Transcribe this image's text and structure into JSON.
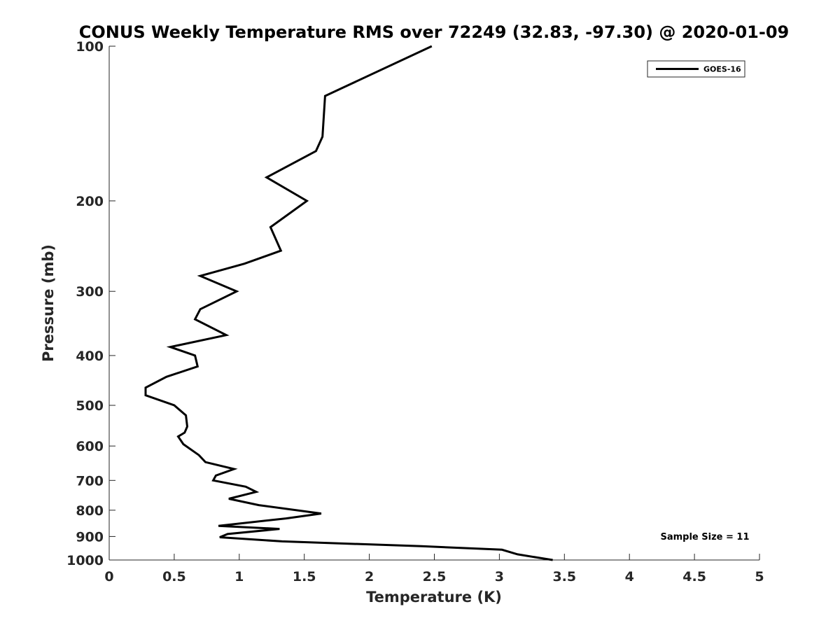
{
  "chart_data": {
    "type": "line",
    "title": "CONUS Weekly Temperature RMS over 72249 (32.83, -97.30) @ 2020-01-09",
    "xlabel": "Temperature (K)",
    "ylabel": "Pressure (mb)",
    "xlim": [
      0,
      5
    ],
    "ylim": [
      100,
      1000
    ],
    "y_scale": "log",
    "y_reversed": true,
    "x_ticks": [
      "0",
      "0.5",
      "1",
      "1.5",
      "2",
      "2.5",
      "3",
      "3.5",
      "4",
      "4.5",
      "5"
    ],
    "y_ticks": [
      "100",
      "200",
      "300",
      "400",
      "500",
      "600",
      "700",
      "800",
      "900",
      "1000"
    ],
    "grid": false,
    "legend_position": "top-right",
    "annotation": "Sample Size = 11",
    "series": [
      {
        "name": "GOES-16",
        "color": "#000000",
        "points": [
          [
            2.48,
            100
          ],
          [
            1.66,
            125
          ],
          [
            1.64,
            150
          ],
          [
            1.59,
            160
          ],
          [
            1.21,
            180
          ],
          [
            1.52,
            200
          ],
          [
            1.24,
            225
          ],
          [
            1.32,
            250
          ],
          [
            1.04,
            265
          ],
          [
            0.7,
            280
          ],
          [
            0.98,
            300
          ],
          [
            0.7,
            325
          ],
          [
            0.66,
            340
          ],
          [
            0.9,
            365
          ],
          [
            0.47,
            385
          ],
          [
            0.66,
            400
          ],
          [
            0.68,
            420
          ],
          [
            0.44,
            440
          ],
          [
            0.28,
            462
          ],
          [
            0.28,
            478
          ],
          [
            0.5,
            500
          ],
          [
            0.59,
            523
          ],
          [
            0.6,
            550
          ],
          [
            0.58,
            565
          ],
          [
            0.53,
            575
          ],
          [
            0.57,
            595
          ],
          [
            0.69,
            625
          ],
          [
            0.74,
            645
          ],
          [
            0.96,
            665
          ],
          [
            0.82,
            685
          ],
          [
            0.8,
            700
          ],
          [
            1.05,
            720
          ],
          [
            1.13,
            737
          ],
          [
            0.92,
            760
          ],
          [
            1.15,
            782
          ],
          [
            1.63,
            812
          ],
          [
            1.36,
            830
          ],
          [
            0.84,
            858
          ],
          [
            1.31,
            870
          ],
          [
            0.91,
            890
          ],
          [
            0.85,
            903
          ],
          [
            1.33,
            920
          ],
          [
            2.4,
            940
          ],
          [
            3.02,
            955
          ],
          [
            3.14,
            975
          ],
          [
            3.41,
            1000
          ]
        ]
      }
    ]
  }
}
